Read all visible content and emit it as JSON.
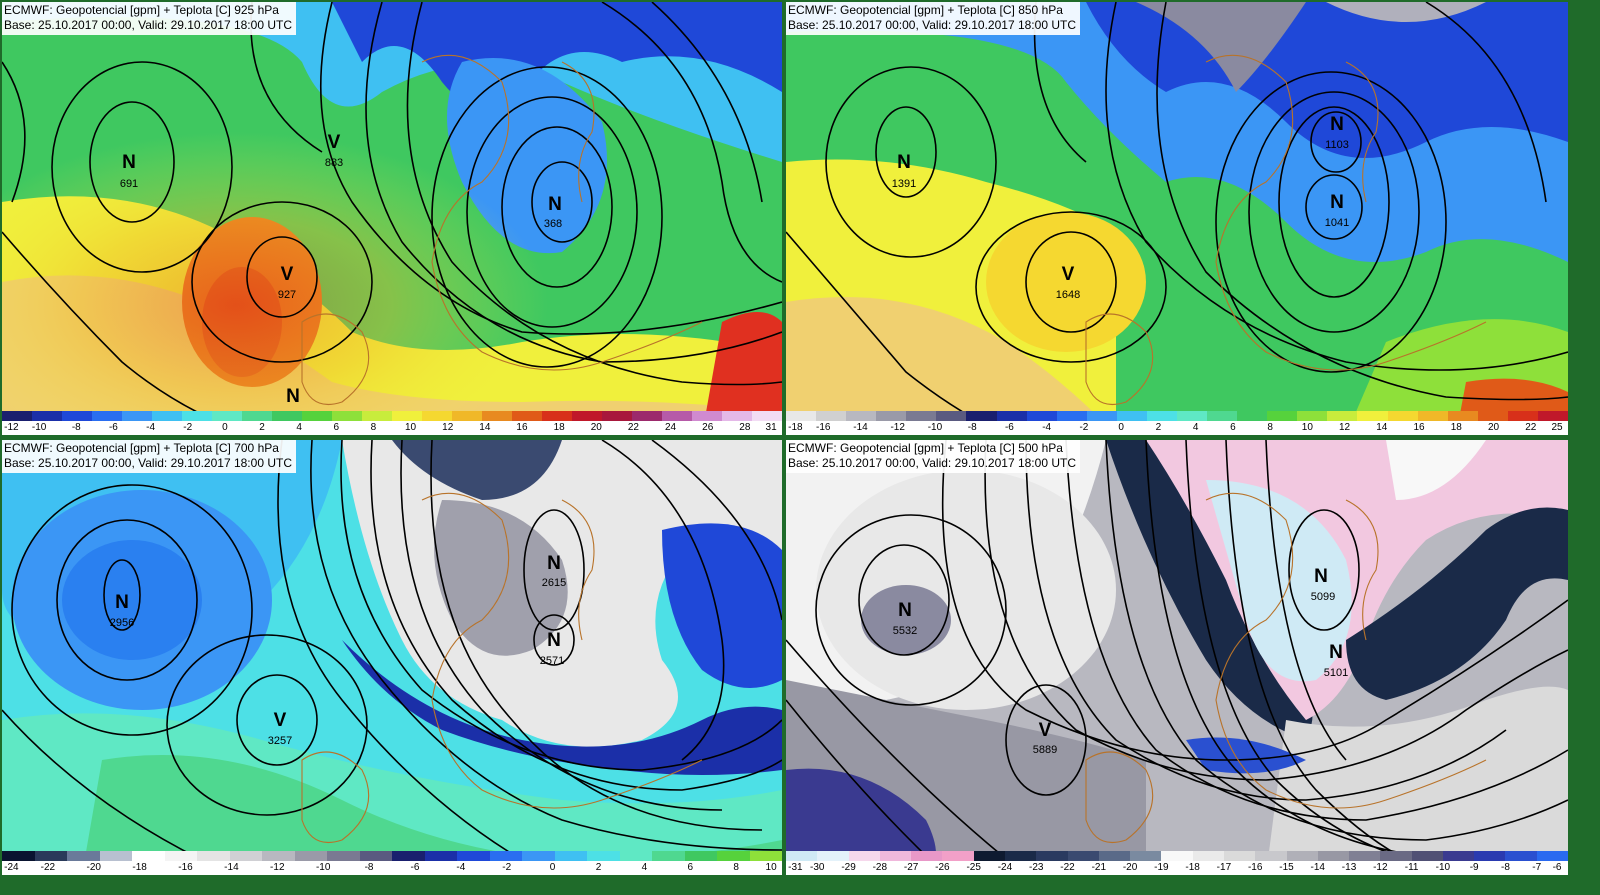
{
  "panels": [
    {
      "id": "p925",
      "title": "ECMWF: Geopotencial [gpm] + Teplota [C] 925 hPa",
      "base": "Base: 25.10.2017 00:00, Valid: 29.10.2017 18:00 UTC",
      "colorbar": {
        "colors": [
          "#1a1f6e",
          "#1b2fa8",
          "#1f48d8",
          "#2a6ef0",
          "#3b96f5",
          "#3fc0f2",
          "#4de0e6",
          "#5fe8c4",
          "#4fd890",
          "#3fc860",
          "#56d23c",
          "#8ee03a",
          "#c8ec3c",
          "#f0f03c",
          "#f5d830",
          "#f0b828",
          "#e88a20",
          "#e05a18",
          "#d8301a",
          "#c0182a",
          "#a8183c",
          "#9c2a6c",
          "#b65aa8",
          "#d08ad0",
          "#e4b8e8",
          "#f2dcf4"
        ],
        "ticks": [
          "-12",
          "-10",
          "-8",
          "-6",
          "-4",
          "-2",
          "0",
          "2",
          "4",
          "6",
          "8",
          "10",
          "12",
          "14",
          "16",
          "18",
          "20",
          "22",
          "24",
          "26",
          "28",
          "31"
        ]
      },
      "markers": [
        {
          "letter": "N",
          "value": "691"
        },
        {
          "letter": "V",
          "value": "883"
        },
        {
          "letter": "N",
          "value": "368"
        },
        {
          "letter": "V",
          "value": "927"
        },
        {
          "letter": "N",
          "value": ""
        }
      ]
    },
    {
      "id": "p850",
      "title": "ECMWF: Geopotencial [gpm] + Teplota [C] 850 hPa",
      "base": "Base: 25.10.2017 00:00, Valid: 29.10.2017 18:00 UTC",
      "colorbar": {
        "colors": [
          "#e8e8e8",
          "#d0d0d0",
          "#b8b8c0",
          "#9a9aa8",
          "#7a7a92",
          "#5a5a80",
          "#1a1f6e",
          "#1b2fa8",
          "#1f48d8",
          "#2a6ef0",
          "#3b96f5",
          "#3fc0f2",
          "#4de0e6",
          "#5fe8c4",
          "#4fd890",
          "#3fc860",
          "#56d23c",
          "#8ee03a",
          "#c8ec3c",
          "#f0f03c",
          "#f5d830",
          "#f0b828",
          "#e88a20",
          "#e05a18",
          "#d8301a",
          "#c0182a"
        ],
        "ticks": [
          "-18",
          "-16",
          "-14",
          "-12",
          "-10",
          "-8",
          "-6",
          "-4",
          "-2",
          "0",
          "2",
          "4",
          "6",
          "8",
          "10",
          "12",
          "14",
          "16",
          "18",
          "20",
          "22",
          "25"
        ]
      },
      "markers": [
        {
          "letter": "N",
          "value": "1391"
        },
        {
          "letter": "N",
          "value": "1103"
        },
        {
          "letter": "N",
          "value": "1041"
        },
        {
          "letter": "V",
          "value": "1648"
        }
      ]
    },
    {
      "id": "p700",
      "title": "ECMWF: Geopotencial [gpm] + Teplota [C] 700 hPa",
      "base": "Base: 25.10.2017 00:00, Valid: 29.10.2017 18:00 UTC",
      "colorbar": {
        "colors": [
          "#0a1430",
          "#2a3a5a",
          "#6a7a9a",
          "#b8c0d0",
          "#ffffff",
          "#f4f4f4",
          "#e4e4e4",
          "#d0d0d4",
          "#b8b8c0",
          "#9a9aa8",
          "#7a7a92",
          "#5a5a80",
          "#1a1f6e",
          "#1b2fa8",
          "#1f48d8",
          "#2a6ef0",
          "#3b96f5",
          "#3fc0f2",
          "#4de0e6",
          "#5fe8c4",
          "#4fd890",
          "#3fc860",
          "#56d23c",
          "#8ee03a"
        ],
        "ticks": [
          "-24",
          "-22",
          "-20",
          "-18",
          "-16",
          "-14",
          "-12",
          "-10",
          "-8",
          "-6",
          "-4",
          "-2",
          "0",
          "2",
          "4",
          "6",
          "8",
          "10"
        ]
      },
      "markers": [
        {
          "letter": "N",
          "value": "2956"
        },
        {
          "letter": "N",
          "value": "2615"
        },
        {
          "letter": "N",
          "value": "2571"
        },
        {
          "letter": "V",
          "value": "3257"
        }
      ]
    },
    {
      "id": "p500",
      "title": "ECMWF: Geopotencial [gpm] + Teplota [C] 500 hPa",
      "base": "Base: 25.10.2017 00:00, Valid: 29.10.2017 18:00 UTC",
      "colorbar": {
        "colors": [
          "#cfeaf5",
          "#e4f2fa",
          "#f6d8ec",
          "#f0b8dc",
          "#e898c8",
          "#f2a0c8",
          "#0e1a30",
          "#1a2a48",
          "#2a3a60",
          "#3a4a70",
          "#5a6a88",
          "#7a8aa0",
          "#f8f8f8",
          "#eaeaea",
          "#dadada",
          "#c8c8cc",
          "#b0b0b8",
          "#9898a4",
          "#808094",
          "#6a6a84",
          "#505074",
          "#3a3a90",
          "#2a3ab0",
          "#2a50d0",
          "#2a6af0"
        ],
        "ticks": [
          "-31",
          "-30",
          "-29",
          "-28",
          "-27",
          "-26",
          "-25",
          "-24",
          "-23",
          "-22",
          "-21",
          "-20",
          "-19",
          "-18",
          "-17",
          "-16",
          "-15",
          "-14",
          "-13",
          "-12",
          "-11",
          "-10",
          "-9",
          "-8",
          "-7",
          "-6"
        ]
      },
      "markers": [
        {
          "letter": "N",
          "value": "5532"
        },
        {
          "letter": "N",
          "value": "5099"
        },
        {
          "letter": "N",
          "value": "5101"
        },
        {
          "letter": "V",
          "value": "5889"
        }
      ]
    }
  ]
}
